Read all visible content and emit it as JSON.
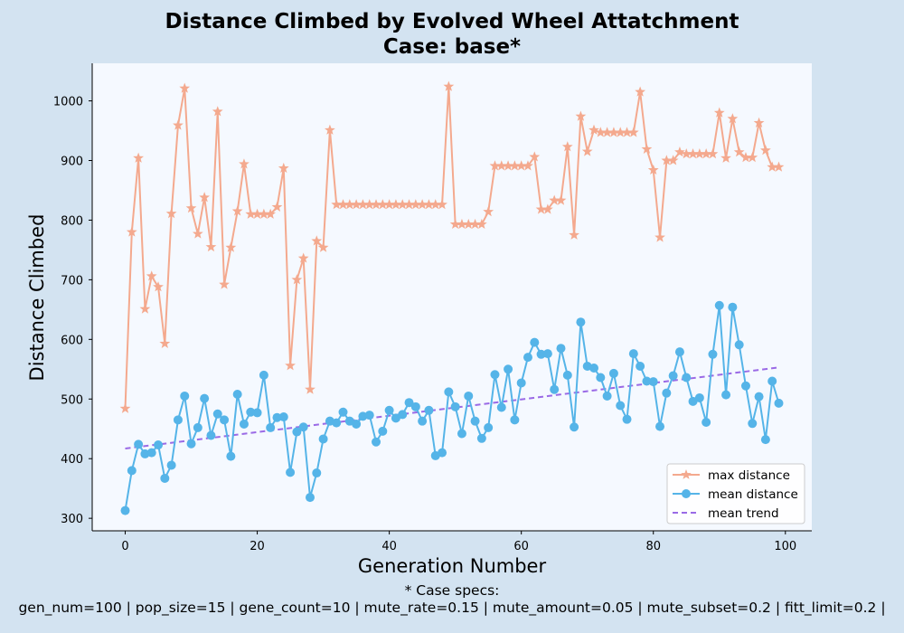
{
  "chart_data": {
    "type": "line",
    "title": "Distance Climbed by Evolved Wheel Attatchment",
    "subtitle": "Case: base*",
    "xlabel": "Generation Number",
    "ylabel": "Distance Climbed",
    "xlim": [
      -5,
      104
    ],
    "ylim": [
      279,
      1063
    ],
    "xticks": [
      0,
      20,
      40,
      60,
      80,
      100
    ],
    "yticks": [
      300,
      400,
      500,
      600,
      700,
      800,
      900,
      1000
    ],
    "grid": false,
    "legend_position": "lower-right",
    "x": [
      0,
      1,
      2,
      3,
      4,
      5,
      6,
      7,
      8,
      9,
      10,
      11,
      12,
      13,
      14,
      15,
      16,
      17,
      18,
      19,
      20,
      21,
      22,
      23,
      24,
      25,
      26,
      27,
      28,
      29,
      30,
      31,
      32,
      33,
      34,
      35,
      36,
      37,
      38,
      39,
      40,
      41,
      42,
      43,
      44,
      45,
      46,
      47,
      48,
      49,
      50,
      51,
      52,
      53,
      54,
      55,
      56,
      57,
      58,
      59,
      60,
      61,
      62,
      63,
      64,
      65,
      66,
      67,
      68,
      69,
      70,
      71,
      72,
      73,
      74,
      75,
      76,
      77,
      78,
      79,
      80,
      81,
      82,
      83,
      84,
      85,
      86,
      87,
      88,
      89,
      90,
      91,
      92,
      93,
      94,
      95,
      96,
      97,
      98,
      99
    ],
    "series": [
      {
        "name": "max distance",
        "color": "#f4a98e",
        "marker": "star",
        "values": [
          484,
          780,
          904,
          651,
          706,
          688,
          593,
          811,
          959,
          1021,
          820,
          777,
          838,
          755,
          982,
          692,
          754,
          815,
          894,
          810,
          810,
          810,
          810,
          822,
          887,
          556,
          700,
          736,
          516,
          765,
          754,
          951,
          826,
          826,
          826,
          826,
          826,
          826,
          826,
          826,
          826,
          826,
          826,
          826,
          826,
          826,
          826,
          826,
          826,
          1024,
          793,
          793,
          793,
          793,
          793,
          814,
          891,
          891,
          891,
          891,
          891,
          891,
          906,
          818,
          818,
          833,
          833,
          923,
          775,
          974,
          915,
          951,
          947,
          947,
          947,
          947,
          947,
          947,
          1015,
          919,
          884,
          771,
          900,
          900,
          914,
          911,
          911,
          911,
          911,
          911,
          980,
          904,
          970,
          914,
          905,
          905,
          963,
          917,
          889,
          889
        ]
      },
      {
        "name": "mean distance",
        "color": "#55b4e8",
        "marker": "circle",
        "values": [
          313,
          380,
          424,
          408,
          410,
          423,
          367,
          389,
          465,
          505,
          425,
          452,
          501,
          439,
          475,
          465,
          404,
          508,
          458,
          478,
          477,
          540,
          452,
          469,
          470,
          377,
          445,
          453,
          335,
          376,
          433,
          463,
          460,
          478,
          463,
          458,
          471,
          473,
          428,
          446,
          481,
          468,
          474,
          494,
          487,
          463,
          481,
          405,
          410,
          512,
          487,
          442,
          505,
          463,
          434,
          452,
          541,
          486,
          550,
          465,
          527,
          570,
          595,
          575,
          576,
          516,
          585,
          540,
          453,
          629,
          555,
          552,
          536,
          505,
          543,
          489,
          466,
          576,
          555,
          530,
          529,
          454,
          510,
          539,
          579,
          536,
          496,
          502,
          461,
          575,
          657,
          507,
          654,
          591,
          522,
          459,
          504,
          432,
          530,
          493
        ]
      },
      {
        "name": "mean trend",
        "color": "#9a6ae6",
        "style": "dashed",
        "values_at_ends": [
          417,
          553
        ]
      }
    ]
  },
  "footer": {
    "line1": "* Case specs:",
    "line2": "gen_num=100 | pop_size=15 | gene_count=10 | mute_rate=0.15 | mute_amount=0.05 | mute_subset=0.2 | fitt_limit=0.2 |"
  }
}
